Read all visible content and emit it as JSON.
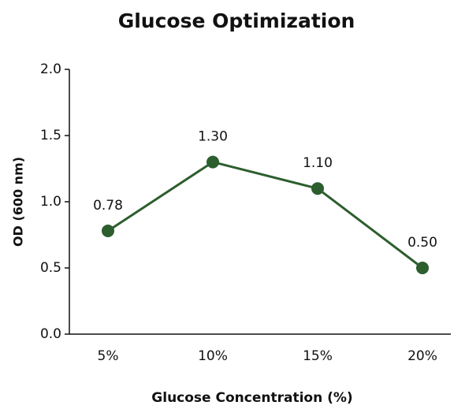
{
  "chart_data": {
    "type": "line",
    "title": "Glucose Optimization",
    "x_label": "Glucose Concentration (%)",
    "y_label": "OD (600 nm)",
    "categories": [
      "5%",
      "10%",
      "15%",
      "20%"
    ],
    "series": [
      {
        "name": "OD",
        "color": "#2d5e2e",
        "values": [
          0.78,
          1.3,
          1.1,
          0.5
        ],
        "value_labels": [
          "0.78",
          "1.30",
          "1.10",
          "0.50"
        ]
      }
    ],
    "ylim": [
      0,
      2
    ],
    "yticks": [
      {
        "value": 0,
        "label": "0.0"
      },
      {
        "value": 0.5,
        "label": "0.5"
      },
      {
        "value": 1,
        "label": "1.0"
      },
      {
        "value": 1.5,
        "label": "1.5"
      },
      {
        "value": 2,
        "label": "2.0"
      }
    ]
  }
}
